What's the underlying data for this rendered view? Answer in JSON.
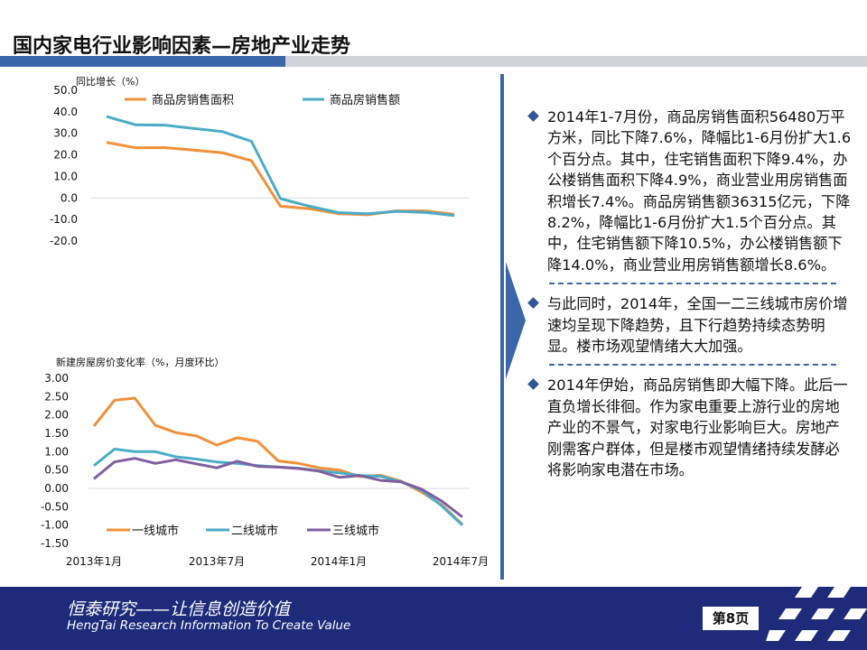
{
  "header": {
    "title": "国内家电行业影响因素—房地产业走势"
  },
  "footer": {
    "slogan_cn": "恒泰研究——让信息创造价值",
    "slogan_en": "HengTai Research Information To Create Value",
    "page_label": "第8页"
  },
  "bullets": [
    {
      "text": "2014年1-7月份，商品房销售面积56480万平方米，同比下降7.6%，降幅比1-6月份扩大1.6个百分点。其中，住宅销售面积下降9.4%，办公楼销售面积下降4.9%，商业营业用房销售面积增长7.4%。商品房销售额36315亿元，下降8.2%，降幅比1-6月份扩大1.5个百分点。其中，住宅销售额下降10.5%，办公楼销售额下降14.0%，商业营业用房销售额增长8.6%。"
    },
    {
      "text": "与此同时，2014年，全国一二三线城市房价增速均呈现下降趋势，且下行趋势持续态势明显。楼市场观望情绪大大加强。"
    },
    {
      "text": "2014年伊始，商品房销售即大幅下降。此后一直负增长徘徊。作为家电重要上游行业的房地产业的不景气，对家电行业影响巨大。房地产刚需客户群体，但是楼市观望情绪持续发酵必将影响家电潜在市场。"
    }
  ],
  "colors": {
    "orange": "#f0913a",
    "teal": "#4bacc6",
    "purple": "#7f5f9f",
    "brand_blue": "#3b67a8",
    "footer_navy": "#1d2b7a"
  },
  "chart_data": [
    {
      "type": "line",
      "title": "",
      "ylabel": "同比增长（%）",
      "ylim": [
        -20,
        50
      ],
      "yticks": [
        "50.0",
        "40.0",
        "30.0",
        "20.0",
        "10.0",
        "0.0",
        "-10.0",
        "-20.0"
      ],
      "legend_position": "top",
      "x": [
        1,
        2,
        3,
        4,
        5,
        6,
        7,
        8,
        9,
        10,
        11,
        12,
        13
      ],
      "series": [
        {
          "name": "商品房销售面积",
          "color": "#f0913a",
          "values": [
            25.8,
            23.3,
            23.4,
            22.2,
            21.0,
            17.3,
            -3.8,
            -5.0,
            -7.3,
            -7.8,
            -6.0,
            -6.0,
            -7.6
          ]
        },
        {
          "name": "商品房销售额",
          "color": "#4bacc6",
          "values": [
            37.8,
            34.0,
            33.8,
            32.3,
            30.8,
            26.3,
            -0.3,
            -3.8,
            -6.8,
            -7.3,
            -6.2,
            -6.7,
            -8.2
          ]
        }
      ]
    },
    {
      "type": "line",
      "title": "新建房屋房价变化率（%，月度环比）",
      "ylim": [
        -1.5,
        3.0
      ],
      "yticks": [
        "3.00",
        "2.50",
        "2.00",
        "1.50",
        "1.00",
        "0.50",
        "0.00",
        "-0.50",
        "-1.00",
        "-1.50"
      ],
      "xticks": [
        "2013年1月",
        "2013年7月",
        "2014年1月",
        "2014年7月"
      ],
      "legend_position": "bottom",
      "series": [
        {
          "name": "一线城市",
          "color": "#f0913a",
          "values": [
            1.7,
            2.4,
            2.46,
            1.72,
            1.52,
            1.43,
            1.18,
            1.38,
            1.28,
            0.75,
            0.68,
            0.56,
            0.5,
            0.32,
            0.36,
            0.2,
            -0.1,
            -0.45,
            -0.98
          ]
        },
        {
          "name": "二线城市",
          "color": "#4bacc6",
          "values": [
            0.62,
            1.07,
            1.0,
            1.0,
            0.86,
            0.8,
            0.72,
            0.68,
            0.62,
            0.58,
            0.55,
            0.48,
            0.42,
            0.35,
            0.33,
            0.18,
            -0.05,
            -0.48,
            -1.0
          ]
        },
        {
          "name": "三线城市",
          "color": "#7f5f9f",
          "values": [
            0.26,
            0.72,
            0.82,
            0.68,
            0.78,
            0.67,
            0.56,
            0.74,
            0.6,
            0.58,
            0.54,
            0.47,
            0.3,
            0.35,
            0.22,
            0.18,
            -0.02,
            -0.35,
            -0.78
          ]
        }
      ]
    }
  ]
}
